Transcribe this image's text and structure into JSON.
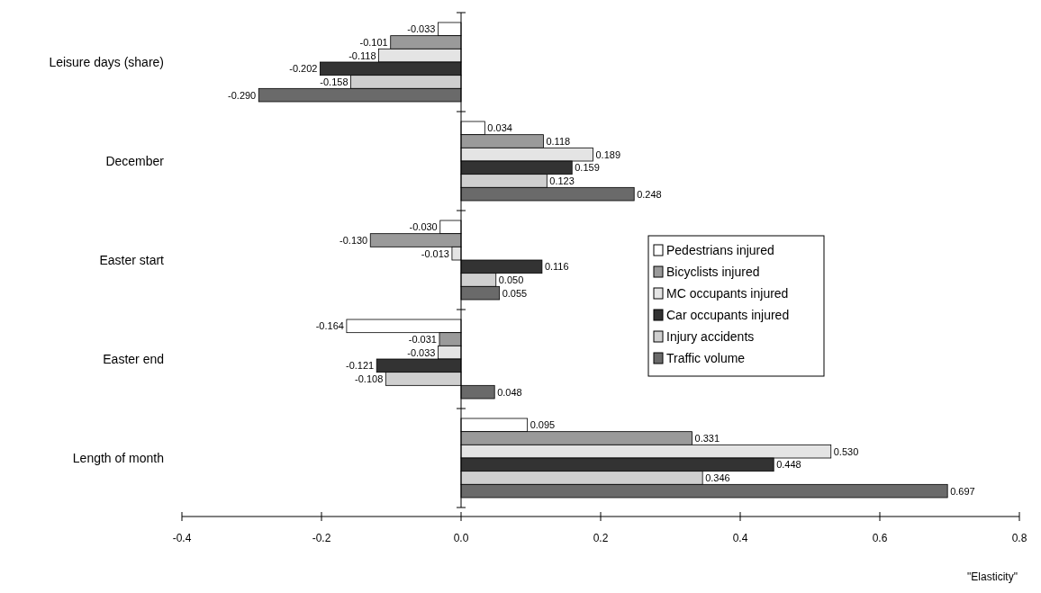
{
  "chart_data": {
    "type": "bar",
    "orientation": "horizontal",
    "xlabel": "\"Elasticity\"",
    "categories": [
      "Leisure days (share)",
      "December",
      "Easter start",
      "Easter end",
      "Length of month"
    ],
    "series": [
      {
        "name": "Pedestrians injured",
        "color": "#ffffff",
        "values": [
          -0.033,
          0.034,
          -0.03,
          -0.164,
          0.095
        ],
        "value_labels": [
          "-0.033",
          "0.034",
          "-0.030",
          "-0.164",
          "0.095"
        ]
      },
      {
        "name": "Bicyclists injured",
        "color": "#9a9a9a",
        "values": [
          -0.101,
          0.118,
          -0.13,
          -0.031,
          0.331
        ],
        "value_labels": [
          "-0.101",
          "0.118",
          "-0.130",
          "-0.031",
          "0.331"
        ]
      },
      {
        "name": "MC occupants injured",
        "color": "#e4e4e4",
        "values": [
          -0.118,
          0.189,
          -0.013,
          -0.033,
          0.53
        ],
        "value_labels": [
          "-0.118",
          "0.189",
          "-0.013",
          "-0.033",
          "0.530"
        ]
      },
      {
        "name": "Car occupants injured",
        "color": "#333333",
        "values": [
          -0.202,
          0.159,
          0.116,
          -0.121,
          0.448
        ],
        "value_labels": [
          "-0.202",
          "0.159",
          "0.116",
          "-0.121",
          "0.448"
        ]
      },
      {
        "name": "Injury accidents",
        "color": "#cfcfcf",
        "values": [
          -0.158,
          0.123,
          0.05,
          -0.108,
          0.346
        ],
        "value_labels": [
          "-0.158",
          "0.123",
          "0.050",
          "-0.108",
          "0.346"
        ]
      },
      {
        "name": "Traffic volume",
        "color": "#6a6a6a",
        "values": [
          -0.29,
          0.248,
          0.055,
          0.048,
          0.697
        ],
        "value_labels": [
          "-0.290",
          "0.248",
          "0.055",
          "0.048",
          "0.697"
        ]
      }
    ],
    "xlim": [
      -0.4,
      0.8
    ],
    "xticks": [
      -0.4,
      -0.2,
      {
        "value": 0,
        "label": "0.0"
      },
      0.2,
      0.4,
      0.6,
      0.8
    ],
    "legend": "right"
  }
}
